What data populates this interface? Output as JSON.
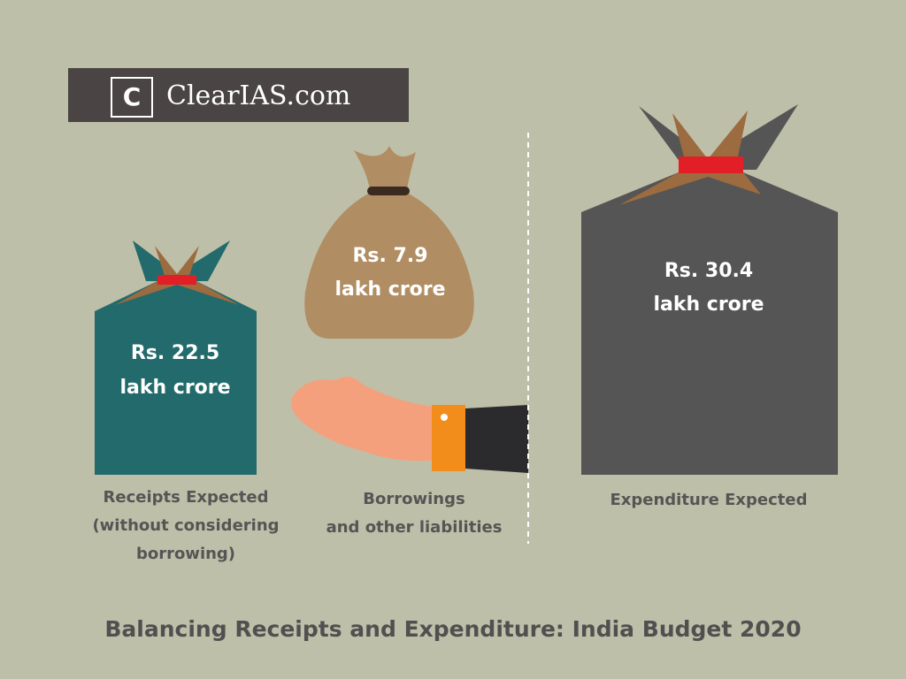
{
  "logo": {
    "letter": "C",
    "text": "ClearIAS.com"
  },
  "bags": [
    {
      "amount": "Rs. 22.5",
      "unit": "lakh crore",
      "label": [
        "Receipts Expected",
        "(without considering",
        "borrowing)"
      ]
    },
    {
      "amount": "Rs. 7.9",
      "unit": "lakh crore",
      "label": [
        "Borrowings",
        "and other liabilities"
      ]
    },
    {
      "amount": "Rs. 30.4",
      "unit": "lakh crore",
      "label": [
        "Expenditure Expected"
      ]
    }
  ],
  "title": "Balancing Receipts and Expenditure: India Budget 2020"
}
